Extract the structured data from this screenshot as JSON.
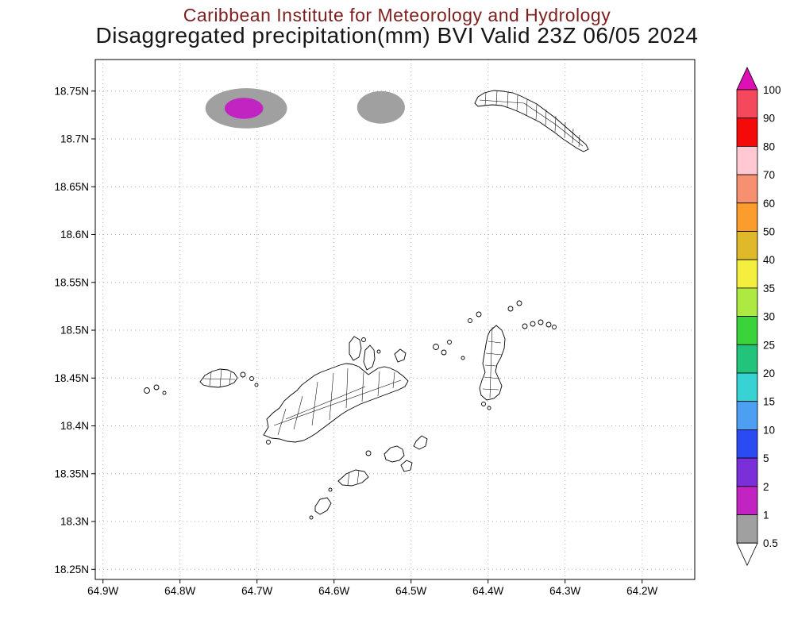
{
  "header": {
    "line1": "Caribbean Institute for Meteorology and Hydrology",
    "line2": "Disaggregated precipitation(mm) BVI Valid 23Z 06/05 2024"
  },
  "chart_data": {
    "type": "heatmap",
    "title": "Disaggregated precipitation(mm) BVI Valid 23Z 06/05 2024",
    "subtitle": "Caribbean Institute for Meteorology and Hydrology",
    "region": "BVI",
    "units": "mm",
    "valid_time": "23Z 06/05 2024",
    "grid": "dotted",
    "legend_position": "right",
    "x_axis": {
      "ticks": [
        {
          "label": "64.9W",
          "lon": 64.9
        },
        {
          "label": "64.8W",
          "lon": 64.8
        },
        {
          "label": "64.7W",
          "lon": 64.7
        },
        {
          "label": "64.6W",
          "lon": 64.6
        },
        {
          "label": "64.5W",
          "lon": 64.5
        },
        {
          "label": "64.4W",
          "lon": 64.4
        },
        {
          "label": "64.3W",
          "lon": 64.3
        },
        {
          "label": "64.2W",
          "lon": 64.2
        }
      ]
    },
    "y_axis": {
      "ticks": [
        {
          "label": "18.75N",
          "lat": 18.75
        },
        {
          "label": "18.7N",
          "lat": 18.7
        },
        {
          "label": "18.65N",
          "lat": 18.65
        },
        {
          "label": "18.6N",
          "lat": 18.6
        },
        {
          "label": "18.55N",
          "lat": 18.55
        },
        {
          "label": "18.5N",
          "lat": 18.5
        },
        {
          "label": "18.45N",
          "lat": 18.45
        },
        {
          "label": "18.4N",
          "lat": 18.4
        },
        {
          "label": "18.35N",
          "lat": 18.35
        },
        {
          "label": "18.3N",
          "lat": 18.3
        },
        {
          "label": "18.25N",
          "lat": 18.25
        }
      ]
    },
    "colorbar": {
      "labels": [
        "100",
        "90",
        "80",
        "70",
        "60",
        "50",
        "40",
        "35",
        "30",
        "25",
        "20",
        "15",
        "10",
        "5",
        "2",
        "1",
        "0.5"
      ],
      "segment_colors_top_to_bottom": [
        "#f4485c",
        "#f50a0a",
        "#ffc8d2",
        "#f59071",
        "#fb9d2c",
        "#e0b92b",
        "#f4ee3e",
        "#aee941",
        "#3bd23b",
        "#22c47c",
        "#37d3d3",
        "#4d9ff2",
        "#2b4bf2",
        "#7a2fd8",
        "#c224c2",
        "#a0a0a0"
      ],
      "arrow_top_color": "#dc10b4",
      "arrow_bottom_color": "#ffffff"
    },
    "features": [
      {
        "name": "precip-cell-west-outer",
        "value_mm": "0.5-1",
        "color": "#a0a0a0",
        "lon_w": 64.714,
        "lat_n": 18.732,
        "rx_deg": 0.053,
        "ry_deg": 0.021
      },
      {
        "name": "precip-cell-west-core",
        "value_mm": "1-2",
        "color": "#c224c2",
        "lon_w": 64.717,
        "lat_n": 18.732,
        "rx_deg": 0.025,
        "ry_deg": 0.011
      },
      {
        "name": "precip-cell-east",
        "value_mm": "0.5-1",
        "color": "#a0a0a0",
        "lon_w": 64.539,
        "lat_n": 18.733,
        "rx_deg": 0.031,
        "ry_deg": 0.017
      }
    ]
  }
}
